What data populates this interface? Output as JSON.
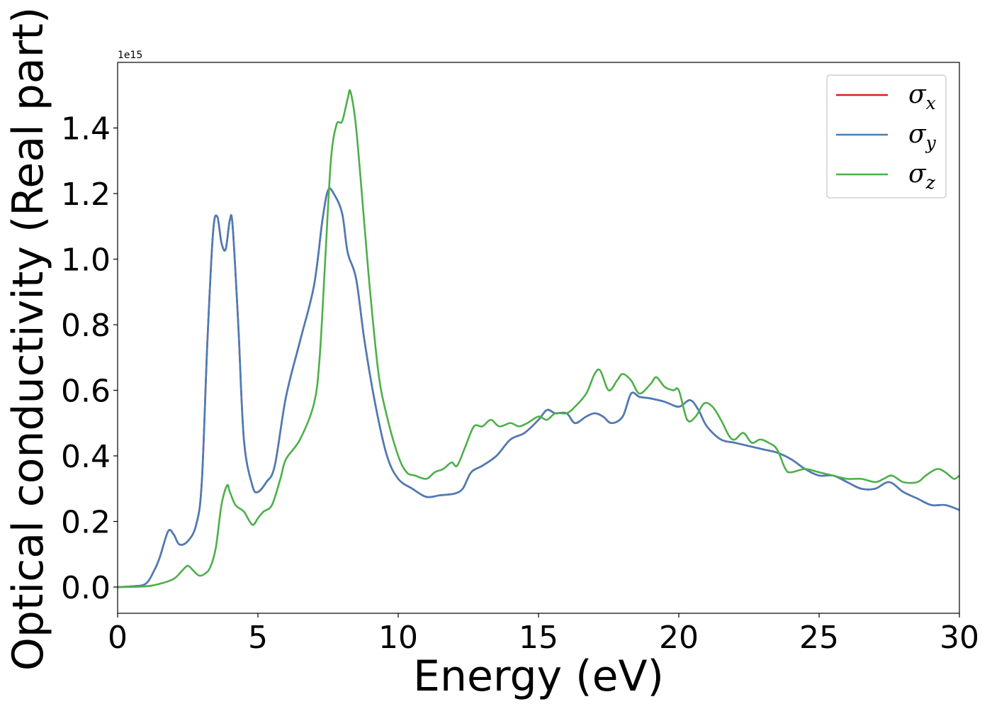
{
  "chart_data": {
    "type": "line",
    "title": "",
    "xlabel": "Energy (eV)",
    "ylabel": "Optical conductivity (Real part)",
    "y_offset_label": "1e15",
    "xlim": [
      0,
      30
    ],
    "ylim": [
      -0.08,
      1.6
    ],
    "x_ticks": [
      0,
      5,
      10,
      15,
      20,
      25,
      30
    ],
    "x_tick_labels": [
      "0",
      "5",
      "10",
      "15",
      "20",
      "25",
      "30"
    ],
    "y_ticks": [
      0.0,
      0.2,
      0.4,
      0.6,
      0.8,
      1.0,
      1.2,
      1.4
    ],
    "y_tick_labels": [
      "0.0",
      "0.2",
      "0.4",
      "0.6",
      "0.8",
      "1.0",
      "1.2",
      "1.4"
    ],
    "grid": false,
    "legend_position": "top-right",
    "series": [
      {
        "name": "σx",
        "sym": "σ",
        "sub": "x",
        "color": "#e41a1c",
        "x": [
          0,
          0.5,
          1.0,
          1.3,
          1.5,
          1.8,
          2.0,
          2.2,
          2.5,
          2.8,
          3.0,
          3.2,
          3.4,
          3.55,
          3.7,
          3.85,
          4.0,
          4.1,
          4.3,
          4.5,
          4.8,
          5.0,
          5.3,
          5.6,
          6.0,
          6.5,
          7.0,
          7.3,
          7.5,
          7.7,
          8.0,
          8.2,
          8.5,
          8.8,
          9.2,
          9.6,
          10.0,
          10.5,
          11.0,
          11.5,
          12.0,
          12.3,
          12.6,
          13.0,
          13.5,
          14.0,
          14.5,
          15.0,
          15.3,
          15.6,
          16.0,
          16.3,
          16.7,
          17.0,
          17.3,
          17.6,
          18.0,
          18.3,
          18.6,
          19.0,
          19.5,
          20.0,
          20.4,
          20.7,
          21.0,
          21.5,
          22.0,
          22.5,
          23.0,
          23.5,
          24.0,
          24.5,
          25.0,
          25.5,
          26.0,
          26.5,
          27.0,
          27.5,
          28.0,
          28.5,
          29.0,
          29.5,
          30.0
        ],
        "y": [
          0,
          0.002,
          0.01,
          0.05,
          0.09,
          0.17,
          0.16,
          0.13,
          0.14,
          0.19,
          0.32,
          0.75,
          1.08,
          1.13,
          1.05,
          1.03,
          1.12,
          1.1,
          0.8,
          0.45,
          0.31,
          0.29,
          0.32,
          0.37,
          0.58,
          0.75,
          0.92,
          1.12,
          1.21,
          1.2,
          1.14,
          1.02,
          0.94,
          0.75,
          0.55,
          0.4,
          0.33,
          0.3,
          0.275,
          0.28,
          0.285,
          0.3,
          0.35,
          0.37,
          0.4,
          0.45,
          0.47,
          0.51,
          0.54,
          0.53,
          0.53,
          0.5,
          0.52,
          0.53,
          0.52,
          0.5,
          0.52,
          0.59,
          0.58,
          0.575,
          0.565,
          0.55,
          0.57,
          0.54,
          0.49,
          0.45,
          0.44,
          0.43,
          0.42,
          0.41,
          0.39,
          0.36,
          0.34,
          0.34,
          0.32,
          0.3,
          0.3,
          0.32,
          0.29,
          0.27,
          0.25,
          0.25,
          0.235
        ]
      },
      {
        "name": "σy",
        "sym": "σ",
        "sub": "y",
        "color": "#4a7db8",
        "x": [
          0,
          0.5,
          1.0,
          1.3,
          1.5,
          1.8,
          2.0,
          2.2,
          2.5,
          2.8,
          3.0,
          3.2,
          3.4,
          3.55,
          3.7,
          3.85,
          4.0,
          4.1,
          4.3,
          4.5,
          4.8,
          5.0,
          5.3,
          5.6,
          6.0,
          6.5,
          7.0,
          7.3,
          7.5,
          7.7,
          8.0,
          8.2,
          8.5,
          8.8,
          9.2,
          9.6,
          10.0,
          10.5,
          11.0,
          11.5,
          12.0,
          12.3,
          12.6,
          13.0,
          13.5,
          14.0,
          14.5,
          15.0,
          15.3,
          15.6,
          16.0,
          16.3,
          16.7,
          17.0,
          17.3,
          17.6,
          18.0,
          18.3,
          18.6,
          19.0,
          19.5,
          20.0,
          20.4,
          20.7,
          21.0,
          21.5,
          22.0,
          22.5,
          23.0,
          23.5,
          24.0,
          24.5,
          25.0,
          25.5,
          26.0,
          26.5,
          27.0,
          27.5,
          28.0,
          28.5,
          29.0,
          29.5,
          30.0
        ],
        "y": [
          0,
          0.002,
          0.01,
          0.05,
          0.09,
          0.17,
          0.16,
          0.13,
          0.14,
          0.19,
          0.32,
          0.75,
          1.08,
          1.13,
          1.05,
          1.03,
          1.12,
          1.1,
          0.8,
          0.45,
          0.31,
          0.29,
          0.32,
          0.37,
          0.58,
          0.75,
          0.92,
          1.12,
          1.21,
          1.2,
          1.14,
          1.02,
          0.94,
          0.75,
          0.55,
          0.4,
          0.33,
          0.3,
          0.275,
          0.28,
          0.285,
          0.3,
          0.35,
          0.37,
          0.4,
          0.45,
          0.47,
          0.51,
          0.54,
          0.53,
          0.53,
          0.5,
          0.52,
          0.53,
          0.52,
          0.5,
          0.52,
          0.59,
          0.58,
          0.575,
          0.565,
          0.55,
          0.57,
          0.54,
          0.49,
          0.45,
          0.44,
          0.43,
          0.42,
          0.41,
          0.39,
          0.36,
          0.34,
          0.34,
          0.32,
          0.3,
          0.3,
          0.32,
          0.29,
          0.27,
          0.25,
          0.25,
          0.235
        ]
      },
      {
        "name": "σz",
        "sym": "σ",
        "sub": "z",
        "color": "#4daf4a",
        "x": [
          0,
          1.0,
          1.5,
          2.0,
          2.3,
          2.5,
          2.7,
          2.9,
          3.1,
          3.3,
          3.5,
          3.7,
          3.9,
          4.0,
          4.2,
          4.5,
          4.8,
          5.0,
          5.2,
          5.5,
          5.8,
          6.0,
          6.5,
          7.0,
          7.2,
          7.4,
          7.6,
          7.8,
          8.0,
          8.2,
          8.3,
          8.5,
          8.8,
          9.0,
          9.3,
          9.6,
          10.0,
          10.3,
          10.6,
          11.0,
          11.3,
          11.6,
          11.9,
          12.1,
          12.4,
          12.7,
          13.0,
          13.3,
          13.6,
          14.0,
          14.3,
          14.6,
          15.0,
          15.3,
          15.6,
          16.0,
          16.3,
          16.7,
          17.0,
          17.2,
          17.5,
          17.8,
          18.0,
          18.3,
          18.6,
          19.0,
          19.2,
          19.5,
          19.8,
          20.0,
          20.3,
          20.6,
          20.9,
          21.2,
          21.5,
          21.8,
          22.0,
          22.3,
          22.6,
          22.9,
          23.2,
          23.5,
          23.8,
          24.0,
          24.5,
          25.0,
          25.5,
          26.0,
          26.5,
          27.0,
          27.3,
          27.6,
          28.0,
          28.5,
          28.8,
          29.2,
          29.5,
          29.8,
          30.0
        ],
        "y": [
          0,
          0.002,
          0.01,
          0.025,
          0.05,
          0.065,
          0.05,
          0.035,
          0.04,
          0.06,
          0.12,
          0.25,
          0.31,
          0.29,
          0.25,
          0.23,
          0.19,
          0.21,
          0.23,
          0.25,
          0.33,
          0.39,
          0.45,
          0.56,
          0.7,
          1.0,
          1.3,
          1.41,
          1.42,
          1.49,
          1.51,
          1.4,
          1.1,
          0.9,
          0.65,
          0.52,
          0.4,
          0.35,
          0.34,
          0.33,
          0.35,
          0.36,
          0.38,
          0.37,
          0.43,
          0.49,
          0.49,
          0.51,
          0.49,
          0.5,
          0.49,
          0.5,
          0.52,
          0.51,
          0.53,
          0.53,
          0.55,
          0.59,
          0.65,
          0.66,
          0.6,
          0.63,
          0.65,
          0.63,
          0.59,
          0.62,
          0.64,
          0.61,
          0.6,
          0.6,
          0.51,
          0.52,
          0.56,
          0.55,
          0.51,
          0.46,
          0.45,
          0.47,
          0.44,
          0.45,
          0.44,
          0.42,
          0.36,
          0.35,
          0.36,
          0.35,
          0.34,
          0.33,
          0.33,
          0.32,
          0.33,
          0.34,
          0.32,
          0.32,
          0.34,
          0.36,
          0.35,
          0.33,
          0.34
        ]
      }
    ]
  }
}
